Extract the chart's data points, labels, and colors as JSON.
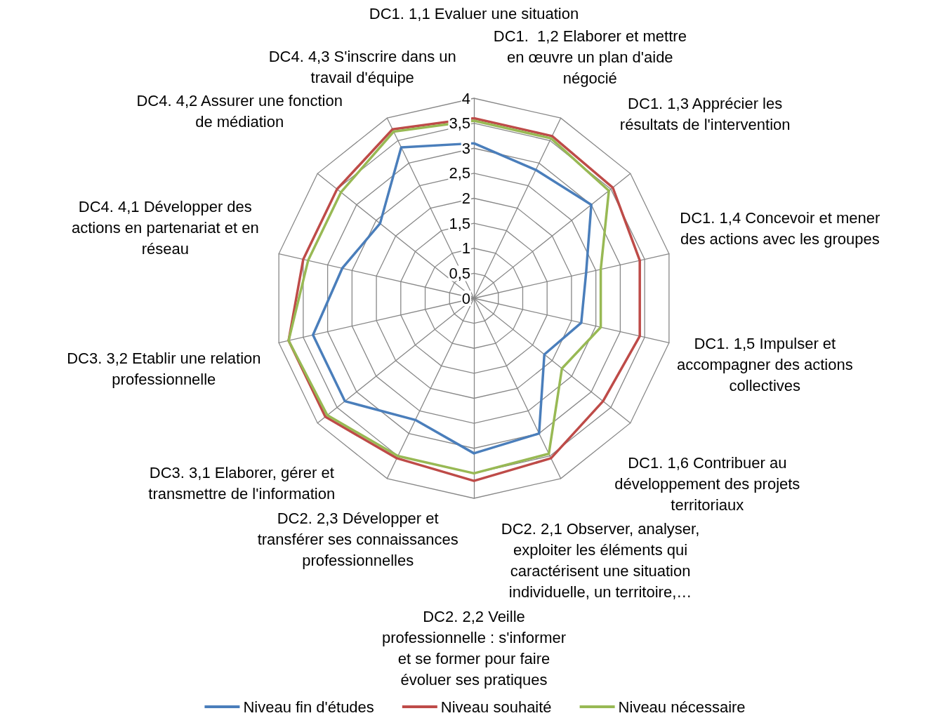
{
  "chart_data": {
    "type": "radar",
    "categories": [
      "DC1. 1,1 Evaluer une situation",
      "DC1.  1,2 Elaborer et mettre en œuvre un plan d'aide négocié",
      "DC1. 1,3 Apprécier les résultats de l'intervention",
      "DC1. 1,4 Concevoir et mener des actions avec les groupes",
      "DC1. 1,5 Impulser et accompagner des actions collectives",
      "DC1. 1,6 Contribuer au développement des projets territoriaux",
      "DC2. 2,1 Observer, analyser, exploiter les éléments qui caractérisent une situation individuelle, un territoire,…",
      "DC2. 2,2 Veille professionnelle : s'informer et se former pour faire évoluer ses pratiques",
      "DC2. 2,3 Développer et transférer ses connaissances professionnelles",
      "DC3. 3,1 Elaborer, gérer et transmettre de l'information",
      "DC3. 3,2 Etablir une relation professionnelle",
      "DC4. 4,1 Développer des actions en partenariat et en réseau",
      "DC4. 4,2 Assurer une fonction de médiation",
      "DC4. 4,3 S'inscrire dans un travail d'équipe"
    ],
    "series": [
      {
        "name": "Niveau fin d'études",
        "color": "#4a7ebb",
        "values": [
          3.1,
          2.85,
          3.0,
          2.3,
          2.2,
          1.8,
          3.0,
          3.1,
          2.7,
          3.3,
          3.3,
          2.7,
          2.4,
          3.35
        ]
      },
      {
        "name": "Niveau souhaité",
        "color": "#be4b48",
        "values": [
          3.6,
          3.6,
          3.55,
          3.4,
          3.4,
          3.3,
          3.55,
          3.65,
          3.55,
          3.8,
          3.8,
          3.5,
          3.5,
          3.75
        ]
      },
      {
        "name": "Niveau nécessaire",
        "color": "#98b954",
        "values": [
          3.55,
          3.55,
          3.45,
          2.6,
          2.6,
          2.25,
          3.45,
          3.5,
          3.5,
          3.75,
          3.8,
          3.4,
          3.4,
          3.7
        ]
      }
    ],
    "ylim": [
      0,
      4
    ],
    "yticks": [
      0,
      {
        "value": 0.5,
        "label": "0,5"
      },
      1,
      {
        "value": 1.5,
        "label": "1,5"
      },
      2,
      {
        "value": 2.5,
        "label": "2,5"
      },
      3,
      {
        "value": 3.5,
        "label": "3,5"
      },
      4
    ],
    "grid": true,
    "legend": "bottom",
    "marker": "none",
    "line_style": "solid"
  }
}
